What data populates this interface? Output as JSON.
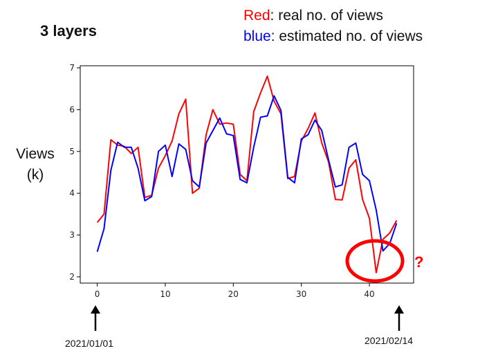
{
  "title": "3 layers",
  "legend": {
    "red_word": "Red",
    "red_rest": ": real no. of views",
    "blue_word": "blue",
    "blue_rest": ":  estimated no. of views"
  },
  "ylabel_line1": "Views",
  "ylabel_line2": "(k)",
  "annotation": "?",
  "start_date": "2021/01/01",
  "end_date": "2021/02/14",
  "colors": {
    "real": "#ff0000",
    "estimated": "#0000ff",
    "annotation": "#ff0000"
  },
  "chart_data": {
    "type": "line",
    "xlim": [
      -2.5,
      46.5
    ],
    "ylim": [
      1.85,
      7.05
    ],
    "xticks": [
      0,
      10,
      20,
      30,
      40
    ],
    "yticks": [
      2,
      3,
      4,
      5,
      6,
      7
    ],
    "series": [
      {
        "name": "Red",
        "color": "#ff0000",
        "x": [
          0,
          1,
          2,
          3,
          4,
          5,
          6,
          7,
          8,
          9,
          10,
          11,
          12,
          13,
          14,
          15,
          16,
          17,
          18,
          19,
          20,
          21,
          22,
          23,
          24,
          25,
          26,
          27,
          28,
          29,
          30,
          31,
          32,
          33,
          34,
          35,
          36,
          37,
          38,
          39,
          40,
          41,
          42,
          43,
          44
        ],
        "y": [
          3.3,
          3.5,
          5.28,
          5.15,
          5.12,
          4.95,
          5.1,
          3.9,
          3.95,
          4.6,
          4.9,
          5.25,
          5.9,
          6.25,
          4.0,
          4.12,
          5.4,
          6.0,
          5.65,
          5.68,
          5.65,
          4.45,
          4.3,
          5.95,
          6.4,
          6.8,
          6.2,
          5.9,
          4.35,
          4.4,
          5.25,
          5.55,
          5.92,
          5.2,
          4.75,
          3.85,
          3.84,
          4.6,
          4.8,
          3.85,
          3.4,
          2.1,
          2.9,
          3.05,
          3.35
        ]
      },
      {
        "name": "blue",
        "color": "#0000ff",
        "x": [
          0,
          1,
          2,
          3,
          4,
          5,
          6,
          7,
          8,
          9,
          10,
          11,
          12,
          13,
          14,
          15,
          16,
          17,
          18,
          19,
          20,
          21,
          22,
          23,
          24,
          25,
          26,
          27,
          28,
          29,
          30,
          31,
          32,
          33,
          34,
          35,
          36,
          37,
          38,
          39,
          40,
          41,
          42,
          43,
          44
        ],
        "y": [
          2.6,
          3.15,
          4.55,
          5.22,
          5.1,
          5.1,
          4.6,
          3.82,
          3.92,
          5.0,
          5.15,
          4.4,
          5.18,
          5.05,
          4.3,
          4.15,
          5.2,
          5.5,
          5.8,
          5.42,
          5.38,
          4.33,
          4.25,
          5.1,
          5.82,
          5.85,
          6.33,
          5.98,
          4.38,
          4.25,
          5.3,
          5.4,
          5.75,
          5.5,
          4.8,
          4.15,
          4.2,
          5.1,
          5.2,
          4.45,
          4.3,
          3.6,
          2.62,
          2.8,
          3.28
        ]
      }
    ]
  }
}
